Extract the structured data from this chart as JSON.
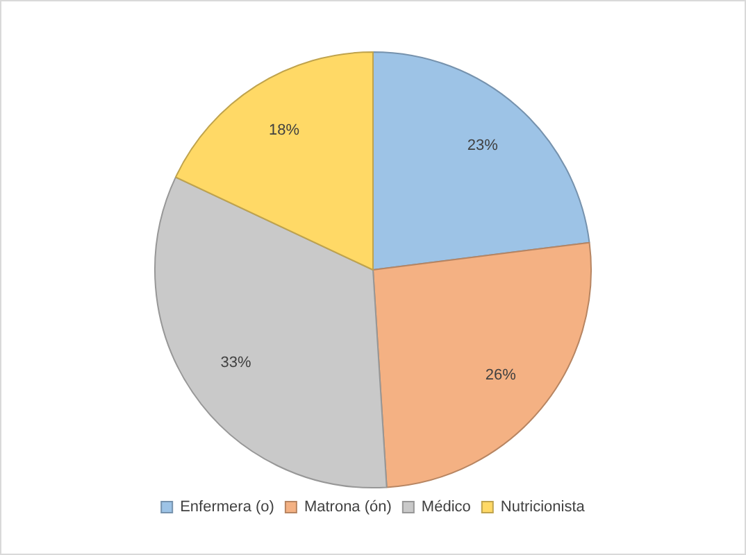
{
  "chart_data": {
    "type": "pie",
    "categories": [
      "Enfermera (o)",
      "Matrona (ón)",
      "Médico",
      "Nutricionista"
    ],
    "values": [
      23,
      26,
      33,
      18
    ],
    "colors": [
      "#9dc3e6",
      "#f4b183",
      "#c9c9c9",
      "#ffd966"
    ],
    "value_labels": [
      "23%",
      "26%",
      "33%",
      "18%"
    ],
    "legend": "bottom"
  }
}
